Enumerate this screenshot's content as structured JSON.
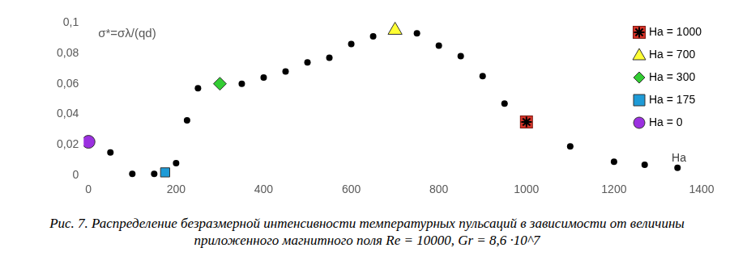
{
  "chart_data": {
    "type": "scatter",
    "title": "σ*=σλ/(qd)",
    "xlabel": "Ha",
    "caption": "Рис. 7. Распределение безразмерной интенсивности температурных пульсаций в зависимости от величины приложенного магнитного поля Re = 10000, Gr = 8,6 ·10^7",
    "xlim": [
      0,
      1400
    ],
    "xticks": [
      0,
      200,
      400,
      600,
      800,
      1000,
      1200,
      1400
    ],
    "ylim": [
      0,
      0.1
    ],
    "yticks": [
      0,
      {
        "value": 0.02,
        "label": "0,02"
      },
      {
        "value": 0.04,
        "label": "0,04"
      },
      {
        "value": 0.06,
        "label": "0,06"
      },
      {
        "value": 0.08,
        "label": "0,08"
      },
      {
        "value": 0.1,
        "label": "0,1"
      }
    ],
    "grid": false,
    "legend": "top-right",
    "series": [
      {
        "color": "#000000",
        "marker": "circle",
        "x": [
          50,
          100,
          150,
          200,
          225,
          250,
          350,
          400,
          450,
          500,
          550,
          600,
          650,
          750,
          800,
          850,
          900,
          950,
          1100,
          1200,
          1270,
          1345
        ],
        "values": [
          0.015,
          0.001,
          0.001,
          0.008,
          0.036,
          0.057,
          0.06,
          0.064,
          0.068,
          0.074,
          0.077,
          0.086,
          0.091,
          0.093,
          0.085,
          0.078,
          0.065,
          0.047,
          0.019,
          0.009,
          0.007,
          0.005
        ]
      },
      {
        "name": "Ha = 1000",
        "color": "#d9352a",
        "marker": "square_star",
        "x": [
          1000
        ],
        "values": [
          0.035
        ]
      },
      {
        "name": "Ha = 700",
        "color": "#ffff33",
        "marker": "triangle",
        "x": [
          700
        ],
        "values": [
          0.095
        ]
      },
      {
        "name": "Ha = 300",
        "color": "#33cc33",
        "marker": "diamond",
        "x": [
          300
        ],
        "values": [
          0.06
        ]
      },
      {
        "name": "Ha = 175",
        "color": "#1e9bd7",
        "marker": "square",
        "x": [
          175
        ],
        "values": [
          0.002
        ]
      },
      {
        "name": "Ha = 0",
        "color": "#9b30e0",
        "marker": "circle",
        "x": [
          0
        ],
        "values": [
          0.022
        ]
      }
    ]
  }
}
